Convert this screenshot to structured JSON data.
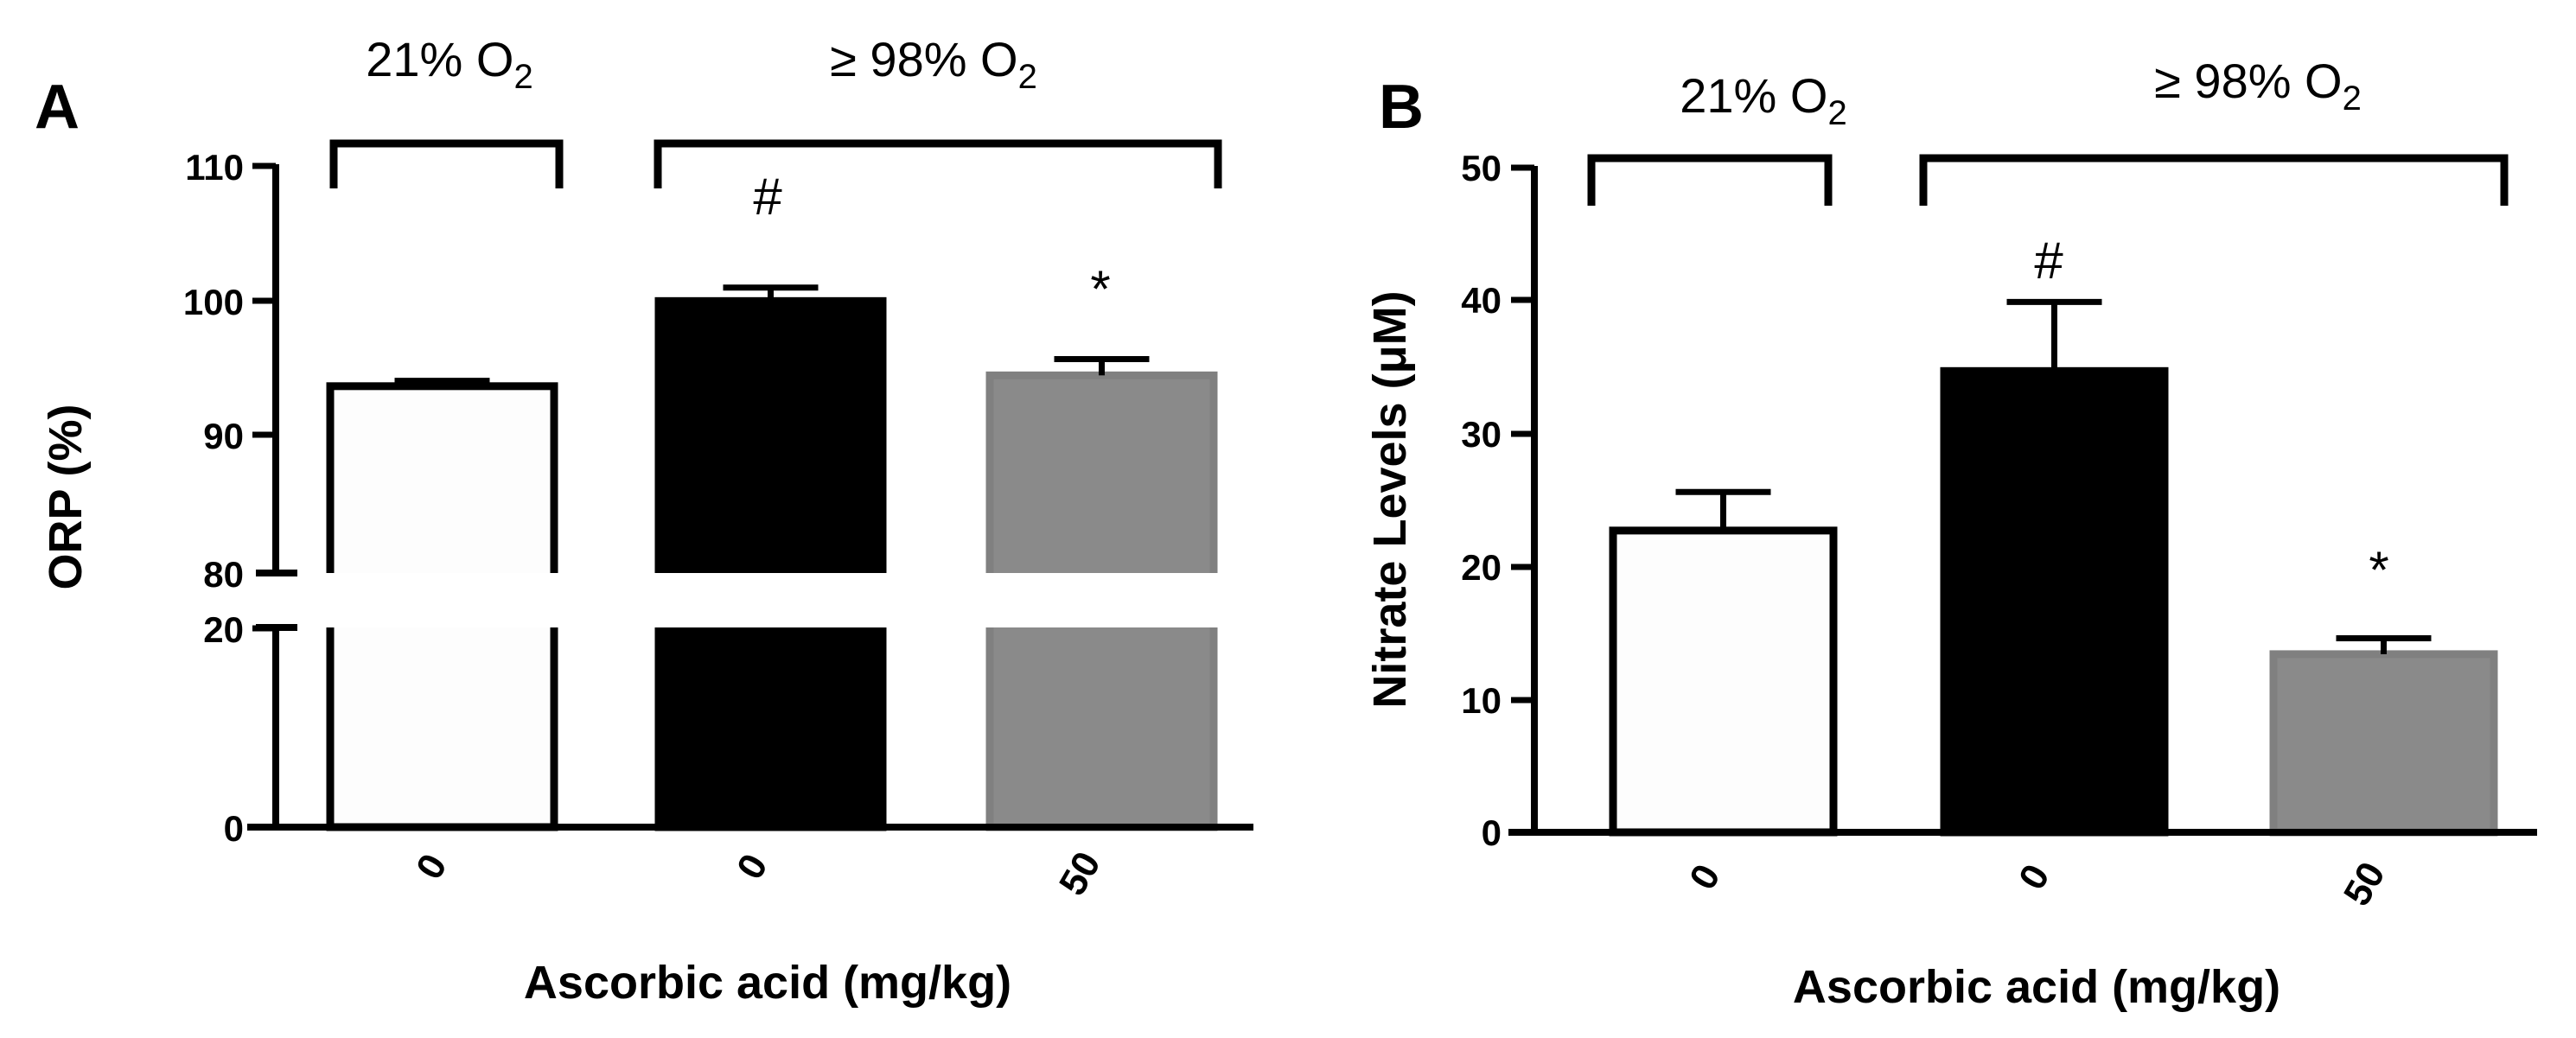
{
  "figure": {
    "panels": [
      "A",
      "B"
    ]
  },
  "colors": {
    "control": "#fdfdfd",
    "hyperoxia": "#000000",
    "ascorbic": "#8a8a8a",
    "axis": "#000000"
  },
  "chart_data": [
    {
      "panel": "A",
      "type": "bar",
      "ylabel": "ORP (%)",
      "xlabel": "Ascorbic acid (mg/kg)",
      "categories": [
        "0",
        "0",
        "50"
      ],
      "values": [
        93.7,
        100.0,
        94.5
      ],
      "errors": [
        0.4,
        1.0,
        1.2
      ],
      "y_axis": {
        "broken": true,
        "lower_range": [
          0,
          20
        ],
        "upper_range": [
          80,
          110
        ],
        "ticks": [
          "0",
          "20",
          "80",
          "90",
          "100",
          "110"
        ]
      },
      "groups": [
        {
          "label_prefix": "21% O",
          "label_sub": "2",
          "bars": [
            0
          ]
        },
        {
          "label_prefix": "≥ 98% O",
          "label_sub": "2",
          "bars": [
            1,
            2
          ]
        }
      ],
      "annotations": [
        {
          "bar": 1,
          "symbol": "#"
        },
        {
          "bar": 2,
          "symbol": "*"
        }
      ]
    },
    {
      "panel": "B",
      "type": "bar",
      "ylabel": "Nitrate Levels (μM)",
      "xlabel": "Ascorbic acid  (mg/kg)",
      "categories": [
        "0",
        "0",
        "50"
      ],
      "values": [
        22.7,
        34.7,
        13.4
      ],
      "errors": [
        2.9,
        5.2,
        1.2
      ],
      "ylim": [
        0,
        50
      ],
      "ticks": [
        "0",
        "10",
        "20",
        "30",
        "40",
        "50"
      ],
      "groups": [
        {
          "label_prefix": "21% O",
          "label_sub": "2",
          "bars": [
            0
          ]
        },
        {
          "label_prefix": "≥ 98% O",
          "label_sub": "2",
          "bars": [
            1,
            2
          ]
        }
      ],
      "annotations": [
        {
          "bar": 1,
          "symbol": "#"
        },
        {
          "bar": 2,
          "symbol": "*"
        }
      ]
    }
  ]
}
